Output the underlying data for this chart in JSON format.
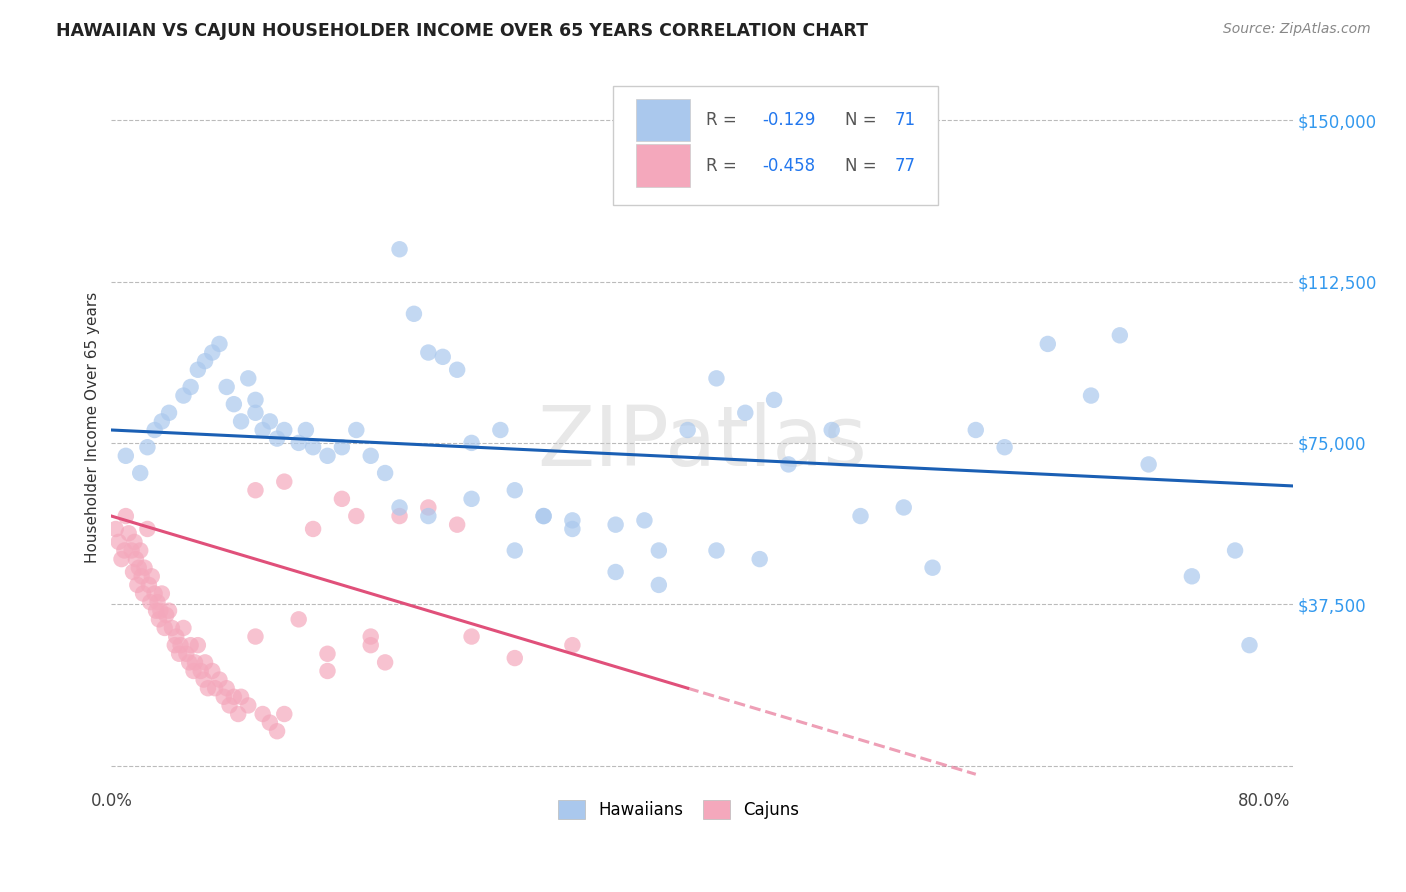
{
  "title": "HAWAIIAN VS CAJUN HOUSEHOLDER INCOME OVER 65 YEARS CORRELATION CHART",
  "source": "Source: ZipAtlas.com",
  "ylabel": "Householder Income Over 65 years",
  "y_ticks": [
    0,
    37500,
    75000,
    112500,
    150000
  ],
  "xlim": [
    0.0,
    0.82
  ],
  "ylim": [
    -5000,
    162000
  ],
  "hawaiian_color": "#aac8ed",
  "cajun_color": "#f4a8bc",
  "hawaiian_line_color": "#1a5fb4",
  "cajun_line_color": "#e0507a",
  "background_color": "#ffffff",
  "grid_color": "#bbbbbb",
  "watermark": "ZIPatlas",
  "hawaiian_line_x0": 0.0,
  "hawaiian_line_y0": 78000,
  "hawaiian_line_x1": 0.82,
  "hawaiian_line_y1": 65000,
  "cajun_line_x0": 0.0,
  "cajun_line_y0": 58000,
  "cajun_line_x1_solid": 0.4,
  "cajun_line_x1_dash_end": 0.6,
  "cajun_line_y1": -2000,
  "hawaiian_x": [
    0.01,
    0.02,
    0.025,
    0.03,
    0.035,
    0.04,
    0.05,
    0.055,
    0.06,
    0.065,
    0.07,
    0.075,
    0.08,
    0.085,
    0.09,
    0.095,
    0.1,
    0.1,
    0.105,
    0.11,
    0.115,
    0.12,
    0.13,
    0.135,
    0.14,
    0.15,
    0.16,
    0.17,
    0.18,
    0.19,
    0.2,
    0.21,
    0.22,
    0.23,
    0.24,
    0.25,
    0.27,
    0.28,
    0.3,
    0.32,
    0.35,
    0.37,
    0.38,
    0.4,
    0.42,
    0.44,
    0.46,
    0.47,
    0.5,
    0.52,
    0.55,
    0.57,
    0.6,
    0.62,
    0.65,
    0.68,
    0.7,
    0.72,
    0.75,
    0.78,
    0.2,
    0.22,
    0.25,
    0.28,
    0.3,
    0.32,
    0.35,
    0.38,
    0.42,
    0.45,
    0.79
  ],
  "hawaiian_y": [
    72000,
    68000,
    74000,
    78000,
    80000,
    82000,
    86000,
    88000,
    92000,
    94000,
    96000,
    98000,
    88000,
    84000,
    80000,
    90000,
    82000,
    85000,
    78000,
    80000,
    76000,
    78000,
    75000,
    78000,
    74000,
    72000,
    74000,
    78000,
    72000,
    68000,
    120000,
    105000,
    96000,
    95000,
    92000,
    75000,
    78000,
    64000,
    58000,
    57000,
    56000,
    57000,
    50000,
    78000,
    90000,
    82000,
    85000,
    70000,
    78000,
    58000,
    60000,
    46000,
    78000,
    74000,
    98000,
    86000,
    100000,
    70000,
    44000,
    50000,
    60000,
    58000,
    62000,
    50000,
    58000,
    55000,
    45000,
    42000,
    50000,
    48000,
    28000
  ],
  "cajun_x": [
    0.003,
    0.005,
    0.007,
    0.009,
    0.01,
    0.012,
    0.014,
    0.015,
    0.016,
    0.017,
    0.018,
    0.019,
    0.02,
    0.021,
    0.022,
    0.023,
    0.025,
    0.026,
    0.027,
    0.028,
    0.03,
    0.031,
    0.032,
    0.033,
    0.034,
    0.035,
    0.037,
    0.038,
    0.04,
    0.042,
    0.044,
    0.045,
    0.047,
    0.048,
    0.05,
    0.052,
    0.054,
    0.055,
    0.057,
    0.058,
    0.06,
    0.062,
    0.064,
    0.065,
    0.067,
    0.07,
    0.072,
    0.075,
    0.078,
    0.08,
    0.082,
    0.085,
    0.088,
    0.09,
    0.095,
    0.1,
    0.105,
    0.11,
    0.115,
    0.12,
    0.13,
    0.14,
    0.15,
    0.16,
    0.17,
    0.18,
    0.19,
    0.2,
    0.22,
    0.24,
    0.1,
    0.12,
    0.15,
    0.18,
    0.25,
    0.28,
    0.32
  ],
  "cajun_y": [
    55000,
    52000,
    48000,
    50000,
    58000,
    54000,
    50000,
    45000,
    52000,
    48000,
    42000,
    46000,
    50000,
    44000,
    40000,
    46000,
    55000,
    42000,
    38000,
    44000,
    40000,
    36000,
    38000,
    34000,
    36000,
    40000,
    32000,
    35000,
    36000,
    32000,
    28000,
    30000,
    26000,
    28000,
    32000,
    26000,
    24000,
    28000,
    22000,
    24000,
    28000,
    22000,
    20000,
    24000,
    18000,
    22000,
    18000,
    20000,
    16000,
    18000,
    14000,
    16000,
    12000,
    16000,
    14000,
    30000,
    12000,
    10000,
    8000,
    12000,
    34000,
    55000,
    22000,
    62000,
    58000,
    28000,
    24000,
    58000,
    60000,
    56000,
    64000,
    66000,
    26000,
    30000,
    30000,
    25000,
    28000
  ]
}
